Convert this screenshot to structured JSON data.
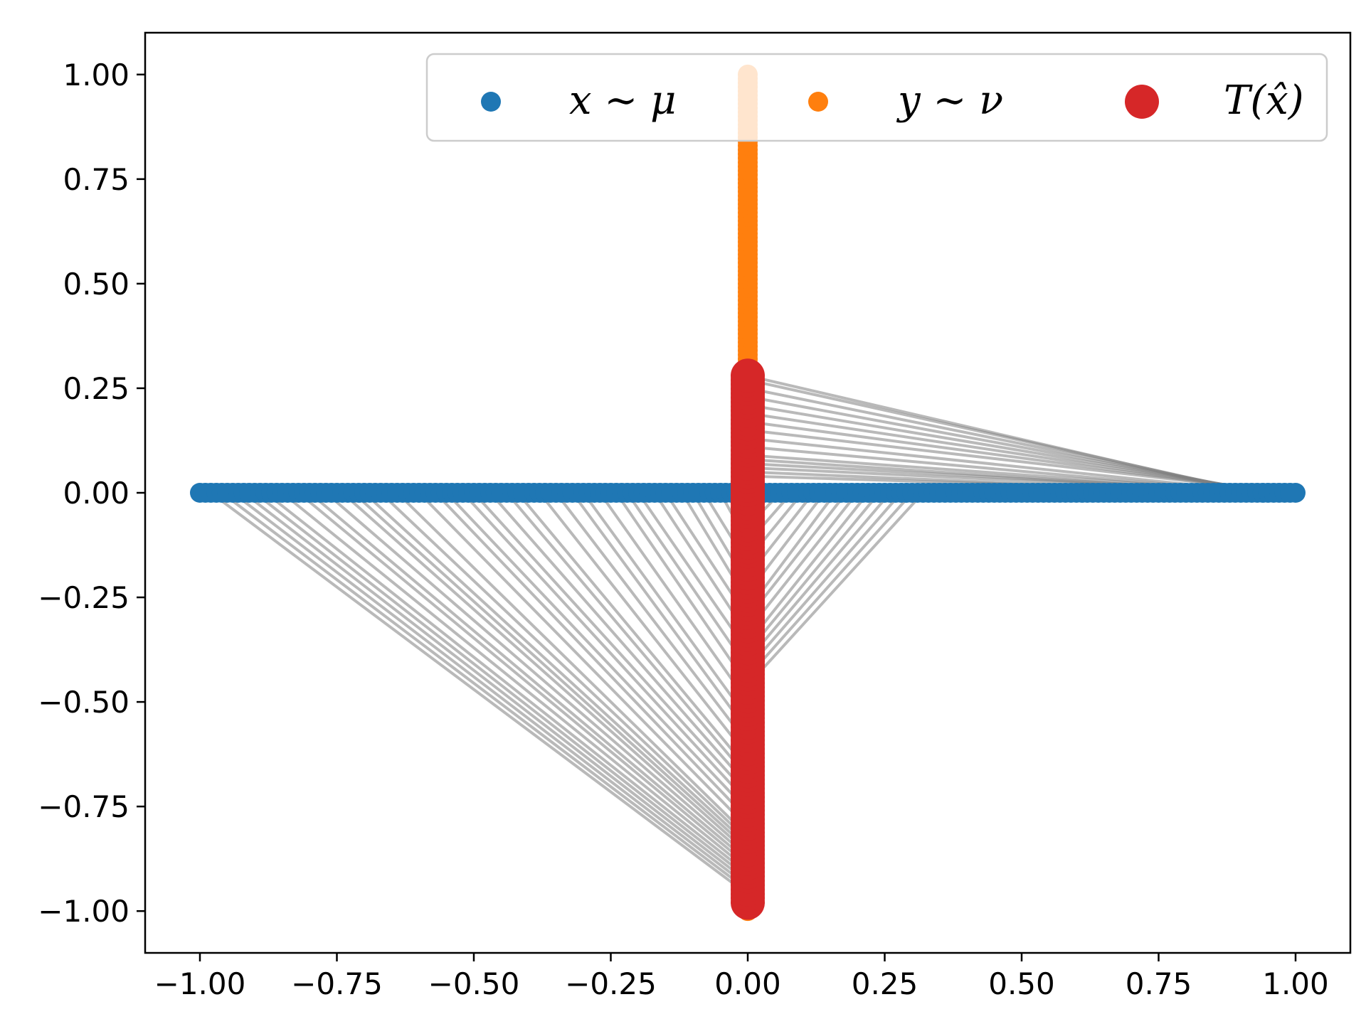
{
  "chart_data": {
    "type": "scatter",
    "title": "",
    "xlabel": "",
    "ylabel": "",
    "xlim": [
      -1.1,
      1.1
    ],
    "ylim": [
      -1.1,
      1.1
    ],
    "grid": false,
    "legend_placement": "upper-right",
    "xticks": [
      -1.0,
      -0.75,
      -0.5,
      -0.25,
      0.0,
      0.25,
      0.5,
      0.75,
      1.0
    ],
    "xtick_labels": [
      "−1.00",
      "−0.75",
      "−0.50",
      "−0.25",
      "0.00",
      "0.25",
      "0.50",
      "0.75",
      "1.00"
    ],
    "yticks": [
      1.0,
      0.75,
      0.5,
      0.25,
      0.0,
      -0.25,
      -0.5,
      -0.75,
      -1.0
    ],
    "ytick_labels": [
      "1.00",
      "0.75",
      "0.50",
      "0.25",
      "0.00",
      "−0.25",
      "−0.50",
      "−0.75",
      "−1.00"
    ],
    "legend": [
      {
        "label": "x ∼ μ",
        "color": "#1f77b4"
      },
      {
        "label": "y ∼ ν",
        "color": "#ff7f0e"
      },
      {
        "label": "T(x̂)",
        "color": "#d62728"
      }
    ],
    "series": [
      {
        "name": "x ∼ μ",
        "color": "#1f77b4",
        "x_range": [
          -1.0,
          1.0
        ],
        "y": 0.0
      },
      {
        "name": "y ∼ ν",
        "color": "#ff7f0e",
        "x": 0.0,
        "y_range": [
          -1.0,
          1.0
        ]
      },
      {
        "name": "T(x̂)",
        "color": "#d62728",
        "x": 0.0,
        "y_range": [
          -0.98,
          0.28
        ]
      }
    ],
    "transport_lines": {
      "color": "#808080",
      "left_sources_x": [
        -0.98,
        -0.96,
        -0.94,
        -0.92,
        -0.9,
        -0.88,
        -0.85,
        -0.82,
        -0.8,
        -0.77,
        -0.74,
        -0.72,
        -0.7,
        -0.67,
        -0.64,
        -0.6,
        -0.57,
        -0.55,
        -0.52,
        -0.5,
        -0.47,
        -0.44,
        -0.42,
        -0.38,
        -0.35,
        -0.32,
        -0.3,
        -0.27,
        -0.24,
        -0.22,
        -0.2,
        -0.17,
        -0.15,
        -0.12,
        -0.1,
        -0.08,
        -0.05,
        -0.03,
        -0.01
      ],
      "left_targets_y": [
        -0.96,
        -0.95,
        -0.94,
        -0.93,
        -0.92,
        -0.91,
        -0.9,
        -0.89,
        -0.88,
        -0.87,
        -0.86,
        -0.85,
        -0.84,
        -0.83,
        -0.82,
        -0.8,
        -0.78,
        -0.76,
        -0.74,
        -0.72,
        -0.7,
        -0.68,
        -0.66,
        -0.63,
        -0.6,
        -0.57,
        -0.54,
        -0.5,
        -0.46,
        -0.42,
        -0.38,
        -0.34,
        -0.3,
        -0.26,
        -0.22,
        -0.17,
        -0.12,
        -0.08,
        -0.04
      ],
      "right_far_sources_x": [
        0.92,
        0.93,
        0.94,
        0.95,
        0.96,
        0.97,
        0.98,
        0.99,
        0.95,
        0.94,
        0.96,
        0.93,
        0.97,
        0.98,
        0.91,
        0.99
      ],
      "right_far_targets_y": [
        0.28,
        0.27,
        0.25,
        0.23,
        0.21,
        0.19,
        0.17,
        0.15,
        0.13,
        0.11,
        0.09,
        0.08,
        0.07,
        0.06,
        0.05,
        0.04
      ],
      "right_near_sources_x": [
        0.02,
        0.04,
        0.06,
        0.08,
        0.1,
        0.12,
        0.14,
        0.16,
        0.18,
        0.2,
        0.22,
        0.24,
        0.26,
        0.28,
        0.3,
        0.32
      ],
      "right_near_targets_y": [
        -0.02,
        -0.05,
        -0.08,
        -0.12,
        -0.16,
        -0.2,
        -0.24,
        -0.28,
        -0.3,
        -0.33,
        -0.36,
        -0.38,
        -0.4,
        -0.42,
        -0.44,
        -0.46
      ]
    }
  }
}
